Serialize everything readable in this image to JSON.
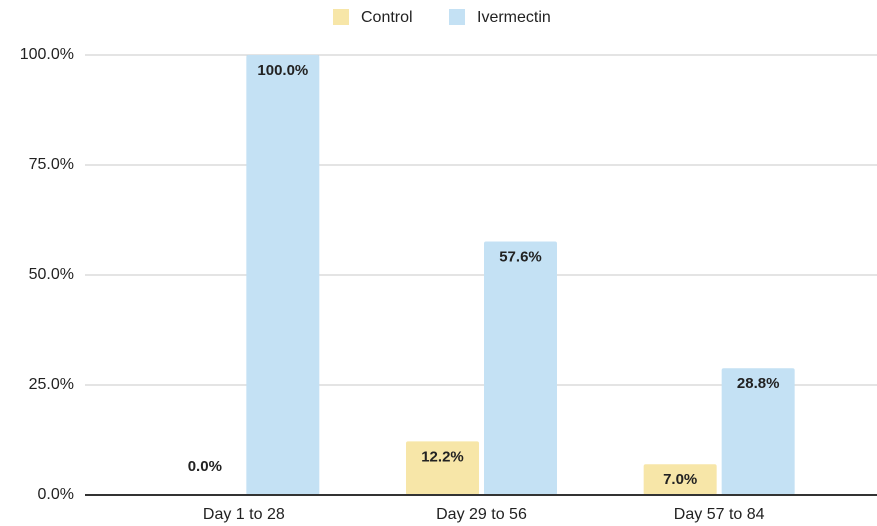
{
  "chart_data": {
    "type": "bar",
    "categories": [
      "Day 1 to 28",
      "Day 29 to 56",
      "Day 57 to 84"
    ],
    "series": [
      {
        "name": "Control",
        "color": "#f7e6a8",
        "values": [
          0,
          12.2,
          7.0
        ],
        "value_labels": [
          "0.0%",
          "12.2%",
          "7.0%"
        ]
      },
      {
        "name": "Ivermectin",
        "color": "#c4e1f4",
        "values": [
          100,
          57.6,
          28.8
        ],
        "value_labels": [
          "100.0%",
          "57.6%",
          "28.8%"
        ]
      }
    ],
    "ylim": [
      0,
      100
    ],
    "yticks": [
      {
        "value": 0,
        "label": "0.0%"
      },
      {
        "value": 25,
        "label": "25.0%"
      },
      {
        "value": 50,
        "label": "50.0%"
      },
      {
        "value": 75,
        "label": "75.0%"
      },
      {
        "value": 100,
        "label": "100.0%"
      }
    ],
    "grid": true,
    "legend": "top"
  }
}
